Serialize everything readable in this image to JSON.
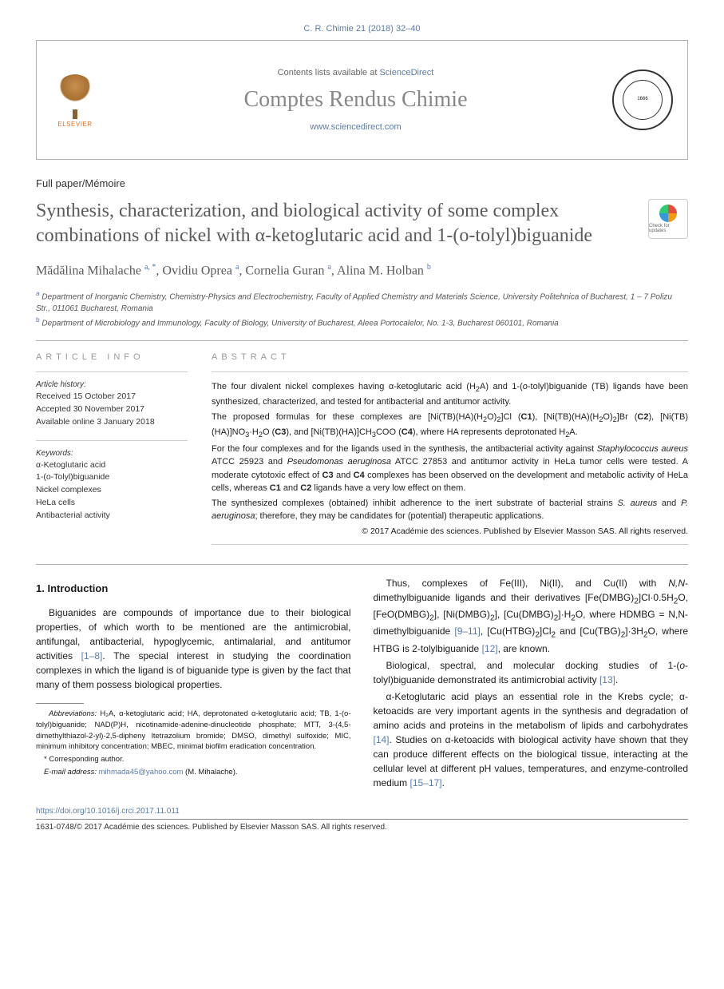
{
  "header": {
    "citation": "C. R. Chimie 21 (2018) 32–40",
    "contents_prefix": "Contents lists available at ",
    "contents_link": "ScienceDirect",
    "journal_title": "Comptes Rendus Chimie",
    "journal_url": "www.sciencedirect.com",
    "elsevier_label": "ELSEVIER",
    "seal_text": "1666"
  },
  "article": {
    "type": "Full paper/Mémoire",
    "title": "Synthesis, characterization, and biological activity of some complex combinations of nickel with α-ketoglutaric acid and 1-(o-tolyl)biguanide",
    "crossmark": "Check for updates",
    "authors_html": "Mădălina Mihalache <sup>a, *</sup>, Ovidiu Oprea <sup>a</sup>, Cornelia Guran <sup>a</sup>, Alina M. Holban <sup>b</sup>",
    "affiliations": [
      "Department of Inorganic Chemistry, Chemistry-Physics and Electrochemistry, Faculty of Applied Chemistry and Materials Science, University Politehnica of Bucharest, 1 – 7 Polizu Str., 011061 Bucharest, Romania",
      "Department of Microbiology and Immunology, Faculty of Biology, University of Bucharest, Aleea Portocalelor, No. 1-3, Bucharest 060101, Romania"
    ],
    "aff_markers": [
      "a",
      "b"
    ]
  },
  "info": {
    "heading": "ARTICLE INFO",
    "history_heading": "Article history:",
    "received": "Received 15 October 2017",
    "accepted": "Accepted 30 November 2017",
    "online": "Available online 3 January 2018",
    "keywords_heading": "Keywords:",
    "keywords": [
      "α-Ketoglutaric acid",
      "1-(o-Tolyl)biguanide",
      "Nickel complexes",
      "HeLa cells",
      "Antibacterial activity"
    ]
  },
  "abstract": {
    "heading": "ABSTRACT",
    "paragraphs": [
      "The four divalent nickel complexes having α-ketoglutaric acid (H₂A) and 1-(o-tolyl)biguanide (TB) ligands have been synthesized, characterized, and tested for antibacterial and antitumor activity.",
      "The proposed formulas for these complexes are [Ni(TB)(HA)(H₂O)₂]Cl (C1), [Ni(TB)(HA)(H₂O)₂]Br (C2), [Ni(TB)(HA)]NO₃·H₂O (C3), and [Ni(TB)(HA)]CH₃COO (C4), where HA represents deprotonated H₂A.",
      "For the four complexes and for the ligands used in the synthesis, the antibacterial activity against Staphylococcus aureus ATCC 25923 and Pseudomonas aeruginosa ATCC 27853 and antitumor activity in HeLa tumor cells were tested. A moderate cytotoxic effect of C3 and C4 complexes has been observed on the development and metabolic activity of HeLa cells, whereas C1 and C2 ligands have a very low effect on them.",
      "The synthesized complexes (obtained) inhibit adherence to the inert substrate of bacterial strains S. aureus and P. aeruginosa; therefore, they may be candidates for (potential) therapeutic applications."
    ],
    "copyright": "© 2017 Académie des sciences. Published by Elsevier Masson SAS. All rights reserved."
  },
  "body": {
    "section_heading": "1. Introduction",
    "col1_paragraphs": [
      "Biguanides are compounds of importance due to their biological properties, of which worth to be mentioned are the antimicrobial, antifungal, antibacterial, hypoglycemic, antimalarial, and antitumor activities [1–8]. The special interest in studying the coordination complexes in which the ligand is of biguanide type is given by the fact that many of them possess biological properties."
    ],
    "col2_paragraphs": [
      "Thus, complexes of Fe(III), Ni(II), and Cu(II) with N,N-dimethylbiguanide ligands and their derivatives [Fe(DMBG)₂]Cl·0.5H₂O, [FeO(DMBG)₂], [Ni(DMBG)₂], [Cu(DMBG)₂]·H₂O, where HDMBG = N,N-dimethylbiguanide [9–11], [Cu(HTBG)₂]Cl₂ and [Cu(TBG)₂]·3H₂O, where HTBG is 2-tolylbiguanide [12], are known.",
      "Biological, spectral, and molecular docking studies of 1-(o-tolyl)biguanide demonstrated its antimicrobial activity [13].",
      "α-Ketoglutaric acid plays an essential role in the Krebs cycle; α-ketoacids are very important agents in the synthesis and degradation of amino acids and proteins in the metabolism of lipids and carbohydrates [14]. Studies on α-ketoacids with biological activity have shown that they can produce different effects on the biological tissue, interacting at the cellular level at different pH values, temperatures, and enzyme-controlled medium [15–17]."
    ],
    "footnotes": {
      "abbreviations_label": "Abbreviations:",
      "abbreviations": "H₂A, α-ketoglutaric acid; HA, deprotonated α-ketoglutaric acid; TB, 1-(o-tolyl)biguanide; NAD(P)H, nicotinamide-adenine-dinucleotide phosphate; MTT, 3-(4,5-dimethylthiazol-2-yl)-2,5-dipheny ltetrazolium bromide; DMSO, dimethyl sulfoxide; MIC, minimum inhibitory concentration; MBEC, minimal biofilm eradication concentration.",
      "corresponding": "* Corresponding author.",
      "email_label": "E-mail address:",
      "email": "mihmada45@yahoo.com",
      "email_suffix": " (M. Mihalache)."
    }
  },
  "footer": {
    "doi": "https://doi.org/10.1016/j.crci.2017.11.011",
    "copyright": "1631-0748/© 2017 Académie des sciences. Published by Elsevier Masson SAS. All rights reserved."
  },
  "refs": {
    "r1_8": "[1–8]",
    "r9_11": "[9–11]",
    "r12": "[12]",
    "r13": "[13]",
    "r14": "[14]",
    "r15_17": "[15–17]"
  }
}
